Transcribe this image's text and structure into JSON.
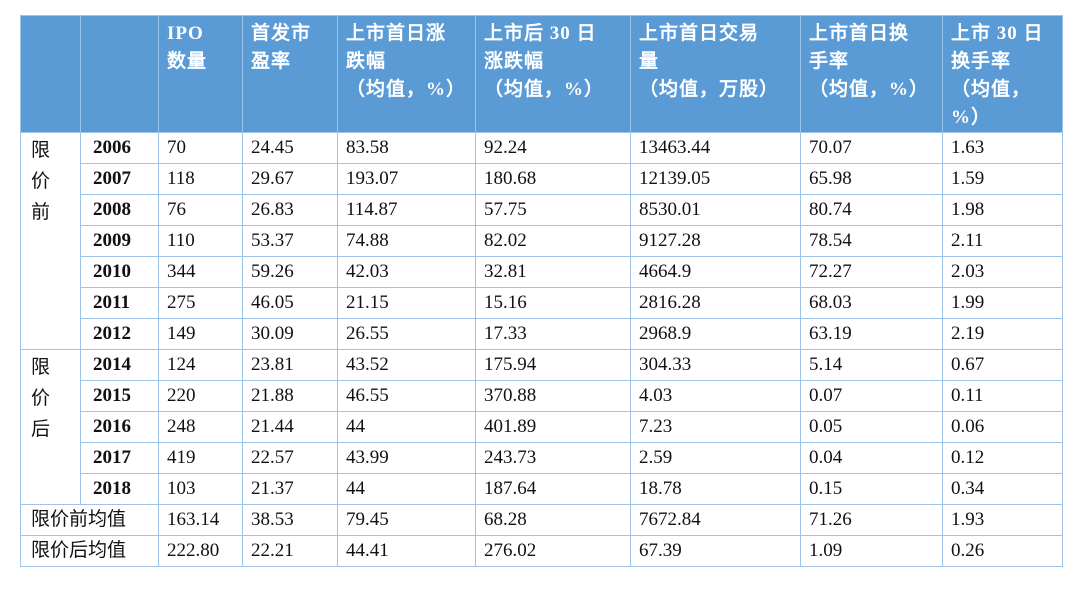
{
  "table": {
    "headers": [
      [
        "IPO",
        "数量"
      ],
      [
        "首发市",
        "盈率"
      ],
      [
        "上市首日涨",
        "跌幅",
        "（均值，%）"
      ],
      [
        "上市后 30 日",
        "涨跌幅",
        "（均值，%）"
      ],
      [
        "上市首日交易",
        "量",
        "（均值，万股）"
      ],
      [
        "上市首日换",
        "手率",
        "（均值，%）"
      ],
      [
        "上市 30 日",
        "换手率",
        "（均值，",
        "%）"
      ]
    ],
    "groups": [
      {
        "label": [
          "限",
          "价",
          "前"
        ],
        "rows": [
          [
            "2006",
            "70",
            "24.45",
            "83.58",
            "92.24",
            "13463.44",
            "70.07",
            "1.63"
          ],
          [
            "2007",
            "118",
            "29.67",
            "193.07",
            "180.68",
            "12139.05",
            "65.98",
            "1.59"
          ],
          [
            "2008",
            "76",
            "26.83",
            "114.87",
            "57.75",
            "8530.01",
            "80.74",
            "1.98"
          ],
          [
            "2009",
            "110",
            "53.37",
            "74.88",
            "82.02",
            "9127.28",
            "78.54",
            "2.11"
          ],
          [
            "2010",
            "344",
            "59.26",
            "42.03",
            "32.81",
            "4664.9",
            "72.27",
            "2.03"
          ],
          [
            "2011",
            "275",
            "46.05",
            "21.15",
            "15.16",
            "2816.28",
            "68.03",
            "1.99"
          ],
          [
            "2012",
            "149",
            "30.09",
            "26.55",
            "17.33",
            "2968.9",
            "63.19",
            "2.19"
          ]
        ]
      },
      {
        "label": [
          "限",
          "价",
          "后"
        ],
        "rows": [
          [
            "2014",
            "124",
            "23.81",
            "43.52",
            "175.94",
            "304.33",
            "5.14",
            "0.67"
          ],
          [
            "2015",
            "220",
            "21.88",
            "46.55",
            "370.88",
            "4.03",
            "0.07",
            "0.11"
          ],
          [
            "2016",
            "248",
            "21.44",
            "44",
            "401.89",
            "7.23",
            "0.05",
            "0.06"
          ],
          [
            "2017",
            "419",
            "22.57",
            "43.99",
            "243.73",
            "2.59",
            "0.04",
            "0.12"
          ],
          [
            "2018",
            "103",
            "21.37",
            "44",
            "187.64",
            "18.78",
            "0.15",
            "0.34"
          ]
        ]
      }
    ],
    "averages": [
      [
        "限价前均值",
        "163.14",
        "38.53",
        "79.45",
        "68.28",
        "7672.84",
        "71.26",
        "1.93"
      ],
      [
        "限价后均值",
        "222.80",
        "22.21",
        "44.41",
        "276.02",
        "67.39",
        "1.09",
        "0.26"
      ]
    ]
  }
}
